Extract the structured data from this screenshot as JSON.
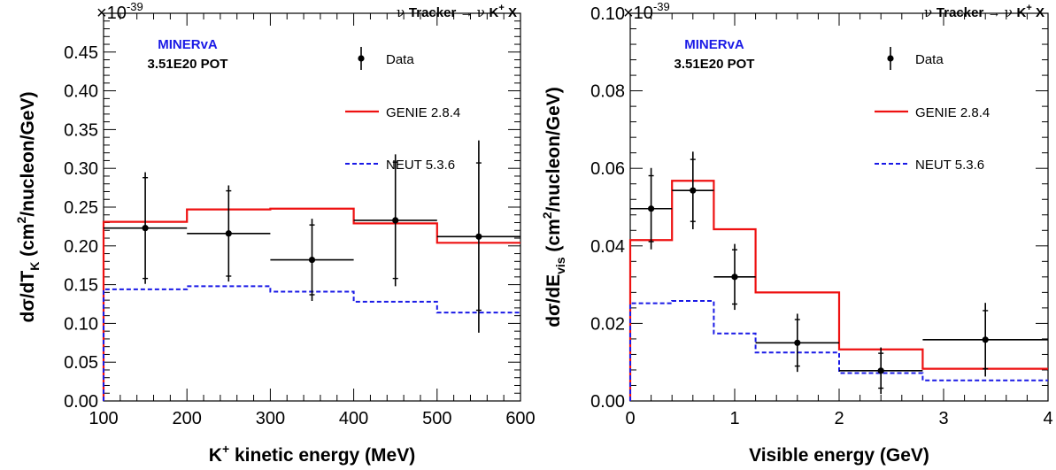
{
  "chart_data": [
    {
      "type": "line",
      "header": {
        "nu": "ν",
        "tracker": "Tracker",
        "arrow": "→",
        "final_state": "K",
        "final_state_sup": "+",
        "final_state_tail": "X"
      },
      "collaboration": "MINERvA",
      "pot": "3.51E20 POT",
      "exponent_prefix": "×10",
      "exponent": "-39",
      "xlabel": {
        "main": "K",
        "sup": "+",
        "rest": " kinetic energy (MeV)"
      },
      "ylabel": {
        "pre": "dσ/dT",
        "sub": "K",
        "mid": " (cm",
        "sup": "2",
        "post": "/nucleon/GeV)"
      },
      "xlim": [
        100,
        600
      ],
      "ylim": [
        0,
        0.5
      ],
      "xticks": [
        100,
        200,
        300,
        400,
        500,
        600
      ],
      "xtick_labels": [
        "100",
        "200",
        "300",
        "400",
        "500",
        "600"
      ],
      "yticks": [
        0,
        0.05,
        0.1,
        0.15,
        0.2,
        0.25,
        0.3,
        0.35,
        0.4,
        0.45
      ],
      "ytick_labels": [
        "0.00",
        "0.05",
        "0.10",
        "0.15",
        "0.20",
        "0.25",
        "0.30",
        "0.35",
        "0.40",
        "0.45"
      ],
      "legend": [
        {
          "label": "Data",
          "style": "marker"
        },
        {
          "label": "GENIE 2.8.4",
          "style": "solid",
          "color": "#ee1111"
        },
        {
          "label": "NEUT 5.3.6",
          "style": "dashed",
          "color": "#1a1ae6"
        }
      ],
      "bin_edges": [
        100,
        200,
        300,
        400,
        500,
        600
      ],
      "series": [
        {
          "name": "GENIE 2.8.4",
          "values": [
            0.231,
            0.247,
            0.248,
            0.229,
            0.204
          ]
        },
        {
          "name": "NEUT 5.3.6",
          "values": [
            0.144,
            0.148,
            0.141,
            0.128,
            0.114
          ]
        }
      ],
      "data_points": [
        {
          "x": 150,
          "y": 0.223,
          "xerr": 50,
          "err_inner": 0.065,
          "err_outer": 0.072
        },
        {
          "x": 250,
          "y": 0.216,
          "xerr": 50,
          "err_inner": 0.055,
          "err_outer": 0.062
        },
        {
          "x": 350,
          "y": 0.182,
          "xerr": 50,
          "err_inner": 0.045,
          "err_outer": 0.053
        },
        {
          "x": 450,
          "y": 0.233,
          "xerr": 50,
          "err_inner": 0.075,
          "err_outer": 0.085
        },
        {
          "x": 550,
          "y": 0.212,
          "xerr": 50,
          "err_inner": 0.095,
          "err_outer": 0.124
        }
      ]
    },
    {
      "type": "line",
      "header": {
        "nu": "ν",
        "tracker": "Tracker",
        "arrow": "→",
        "final_state": "K",
        "final_state_sup": "+",
        "final_state_tail": "X"
      },
      "collaboration": "MINERvA",
      "pot": "3.51E20 POT",
      "exponent_prefix": "×10",
      "exponent": "-39",
      "xlabel": {
        "main": "Visible energy (GeV)",
        "sup": "",
        "rest": ""
      },
      "ylabel": {
        "pre": "dσ/dE",
        "sub": "vis",
        "mid": " (cm",
        "sup": "2",
        "post": "/nucleon/GeV)"
      },
      "xlim": [
        0,
        4
      ],
      "ylim": [
        0,
        0.1
      ],
      "xticks": [
        0,
        1,
        2,
        3,
        4
      ],
      "xtick_labels": [
        "0",
        "1",
        "2",
        "3",
        "4"
      ],
      "yticks": [
        0,
        0.02,
        0.04,
        0.06,
        0.08,
        0.1
      ],
      "ytick_labels": [
        "0.00",
        "0.02",
        "0.04",
        "0.06",
        "0.08",
        "0.10"
      ],
      "legend": [
        {
          "label": "Data",
          "style": "marker"
        },
        {
          "label": "GENIE 2.8.4",
          "style": "solid",
          "color": "#ee1111"
        },
        {
          "label": "NEUT 5.3.6",
          "style": "dashed",
          "color": "#1a1ae6"
        }
      ],
      "bin_edges": [
        0,
        0.4,
        0.8,
        1.2,
        2.0,
        2.8,
        4.0
      ],
      "series": [
        {
          "name": "GENIE 2.8.4",
          "values": [
            0.0415,
            0.0568,
            0.0443,
            0.028,
            0.0133,
            0.0083
          ]
        },
        {
          "name": "NEUT 5.3.6",
          "values": [
            0.0252,
            0.0258,
            0.0174,
            0.0125,
            0.0072,
            0.0053
          ]
        }
      ],
      "data_points": [
        {
          "x": 0.2,
          "y": 0.0496,
          "xerr": 0.2,
          "err_inner": 0.0085,
          "err_outer": 0.0105
        },
        {
          "x": 0.6,
          "y": 0.0543,
          "xerr": 0.2,
          "err_inner": 0.008,
          "err_outer": 0.01
        },
        {
          "x": 1.0,
          "y": 0.032,
          "xerr": 0.2,
          "err_inner": 0.007,
          "err_outer": 0.0085
        },
        {
          "x": 1.6,
          "y": 0.015,
          "xerr": 0.4,
          "err_inner": 0.006,
          "err_outer": 0.0075
        },
        {
          "x": 2.4,
          "y": 0.0078,
          "xerr": 0.4,
          "err_inner": 0.0045,
          "err_outer": 0.006
        },
        {
          "x": 3.4,
          "y": 0.0158,
          "xerr": 0.6,
          "err_inner": 0.0075,
          "err_outer": 0.0095
        }
      ]
    }
  ]
}
